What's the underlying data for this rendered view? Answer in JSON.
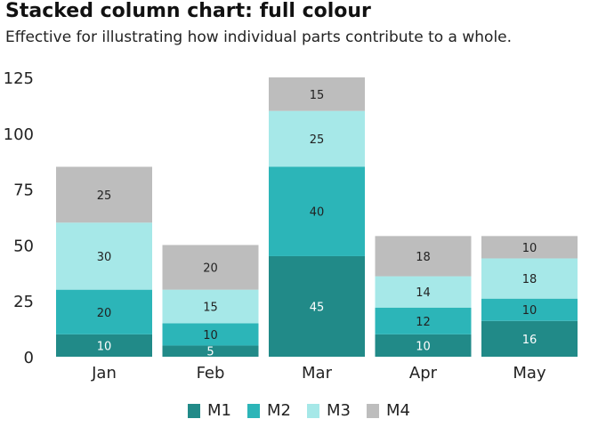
{
  "header": {
    "title": "Stacked column chart: full colour",
    "subtitle": "Effective for illustrating how individual parts contribute to a whole."
  },
  "colors": {
    "M1": "#218a88",
    "M2": "#2cb5b8",
    "M3": "#a6e8e8",
    "M4": "#bdbdbd",
    "label_dark": "#222222",
    "label_light": "#ffffff"
  },
  "chart_data": {
    "type": "bar",
    "stacked": true,
    "title": "Stacked column chart: full colour",
    "subtitle": "Effective for illustrating how individual parts contribute to a whole.",
    "categories": [
      "Jan",
      "Feb",
      "Mar",
      "Apr",
      "May"
    ],
    "series": [
      {
        "name": "M1",
        "values": [
          10,
          5,
          45,
          10,
          16
        ]
      },
      {
        "name": "M2",
        "values": [
          20,
          10,
          40,
          12,
          10
        ]
      },
      {
        "name": "M3",
        "values": [
          30,
          15,
          25,
          14,
          18
        ]
      },
      {
        "name": "M4",
        "values": [
          25,
          20,
          15,
          18,
          10
        ]
      }
    ],
    "ylim": [
      0,
      125
    ],
    "yticks": [
      0,
      25,
      50,
      75,
      100,
      125
    ],
    "grid": false,
    "legend_position": "bottom"
  }
}
